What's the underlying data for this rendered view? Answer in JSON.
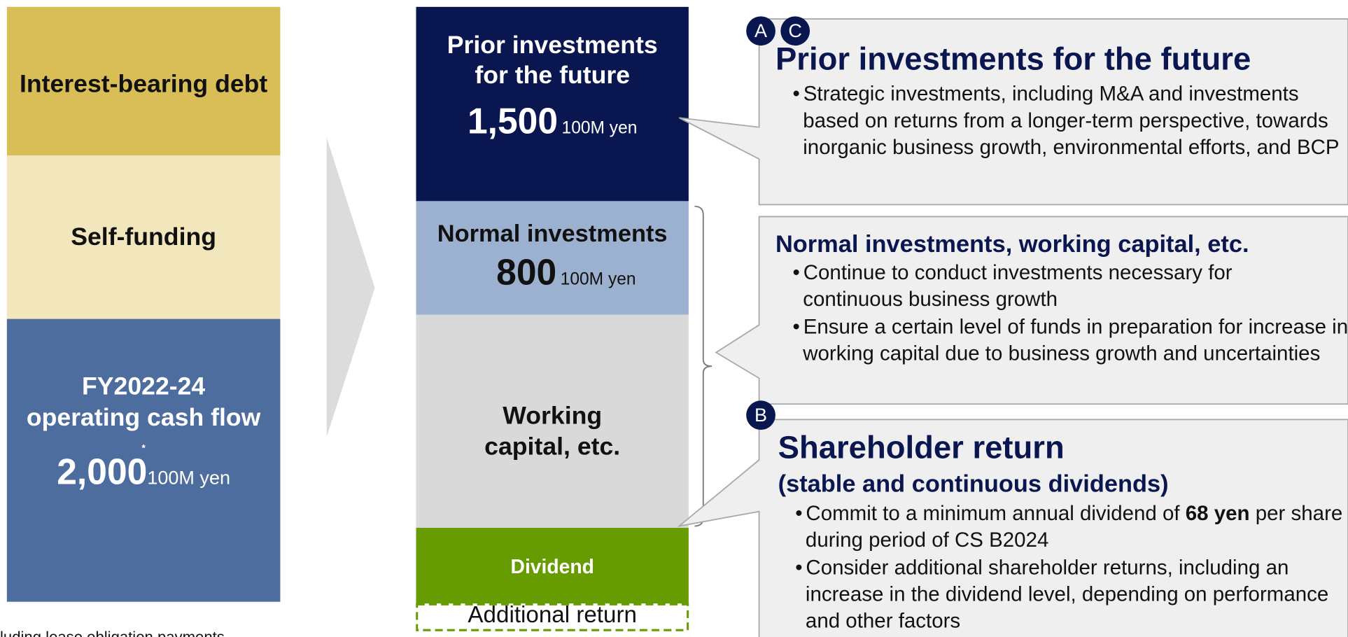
{
  "sources": {
    "debt": "Interest-bearing debt",
    "self_funding": "Self-funding",
    "cash_flow": {
      "label": "FY2022-24 operating cash flow",
      "note_mark": "*",
      "amount": "2,000",
      "unit": "100M yen"
    },
    "footnote": "luding lease obligation payments"
  },
  "allocation": {
    "prior": {
      "label": "Prior investments for the future",
      "amount": "1,500",
      "unit": "100M yen"
    },
    "normal": {
      "label": "Normal investments",
      "amount": "800",
      "unit": "100M yen"
    },
    "working": {
      "label": "Working capital, etc."
    },
    "dividend": {
      "label": "Dividend"
    },
    "additional": {
      "label": "Additional return"
    }
  },
  "panels": [
    {
      "badges": [
        "A",
        "C"
      ],
      "title": "Prior investments for the future",
      "bullets": [
        "Strategic investments, including M&A and investments based on returns from a longer-term perspective, towards inorganic business growth, environmental efforts, and BCP"
      ]
    },
    {
      "title": "Normal investments, working capital, etc.",
      "bullets": [
        "Continue to conduct investments necessary for continuous business growth",
        "Ensure a certain level of funds in preparation for increase in working capital due to business growth and uncertainties"
      ]
    },
    {
      "badges": [
        "B"
      ],
      "title": "Shareholder return",
      "subtitle": "(stable and continuous dividends)",
      "bullets": [
        [
          "Commit to a minimum annual dividend of ",
          "68 yen",
          " per share during period of CS B2024"
        ],
        "Consider additional shareholder returns, including an increase in the dividend level, depending on performance and other factors"
      ]
    }
  ]
}
